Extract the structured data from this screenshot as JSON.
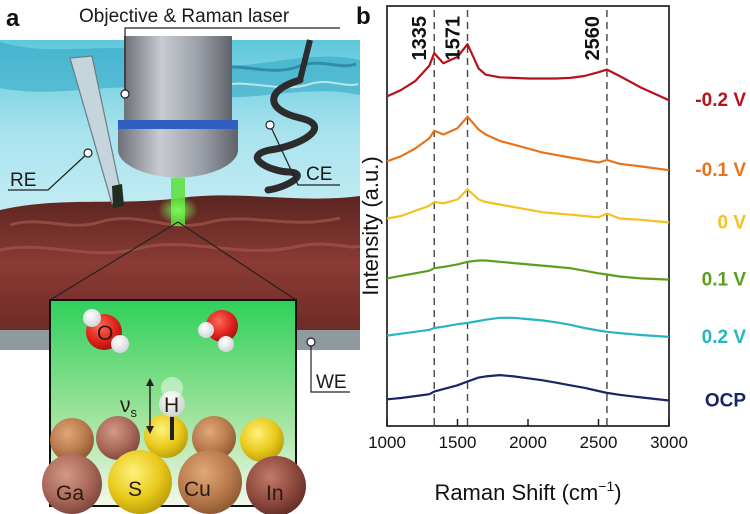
{
  "panel_a": {
    "letter": "a",
    "objective_label": "Objective & Raman laser",
    "re_label": "RE",
    "ce_label": "CE",
    "we_label": "WE",
    "water_o_label": "O",
    "h_label": "H",
    "vibration_label": "ν",
    "vibration_sub": "s",
    "elements": [
      "Ga",
      "S",
      "Cu",
      "In"
    ]
  },
  "panel_b": {
    "letter": "b"
  },
  "colors": {
    "-0.2 V": "#b5121b",
    "-0.1 V": "#e8731a",
    "0 V": "#f2c21e",
    "0.1 V": "#5e9e1f",
    "0.2 V": "#27b5c2",
    "OCP": "#1a2466"
  },
  "chart_data": {
    "type": "line",
    "xlabel": "Raman Shift (cm",
    "xlabel_sup": "−1",
    "xlabel_close": ")",
    "ylabel": "Intensity (a.u.)",
    "xlim": [
      1000,
      3000
    ],
    "xticks": [
      1000,
      1500,
      2000,
      2500,
      3000
    ],
    "x": [
      1000,
      1100,
      1200,
      1300,
      1335,
      1400,
      1500,
      1571,
      1650,
      1700,
      1800,
      1900,
      2000,
      2100,
      2200,
      2300,
      2400,
      2500,
      2560,
      2650,
      2800,
      3000
    ],
    "series": [
      {
        "name": "-0.2 V",
        "values": [
          0.18,
          0.28,
          0.42,
          0.66,
          0.86,
          0.7,
          0.8,
          1.0,
          0.62,
          0.52,
          0.48,
          0.47,
          0.46,
          0.46,
          0.46,
          0.47,
          0.5,
          0.56,
          0.6,
          0.5,
          0.32,
          0.12
        ]
      },
      {
        "name": "-0.1 V",
        "values": [
          0.16,
          0.24,
          0.36,
          0.52,
          0.64,
          0.58,
          0.68,
          0.86,
          0.66,
          0.58,
          0.48,
          0.42,
          0.36,
          0.3,
          0.26,
          0.22,
          0.18,
          0.14,
          0.18,
          0.12,
          0.08,
          0.02
        ]
      },
      {
        "name": "0 V",
        "values": [
          0.06,
          0.1,
          0.18,
          0.26,
          0.32,
          0.3,
          0.36,
          0.52,
          0.36,
          0.32,
          0.28,
          0.24,
          0.2,
          0.16,
          0.14,
          0.12,
          0.1,
          0.08,
          0.14,
          0.06,
          0.04,
          0.0
        ]
      },
      {
        "name": "0.1 V",
        "values": [
          0.02,
          0.06,
          0.1,
          0.14,
          0.18,
          0.2,
          0.24,
          0.28,
          0.3,
          0.3,
          0.28,
          0.26,
          0.24,
          0.22,
          0.2,
          0.18,
          0.14,
          0.1,
          0.08,
          0.05,
          0.02,
          0.0
        ]
      },
      {
        "name": "0.2 V",
        "values": [
          0.02,
          0.05,
          0.08,
          0.11,
          0.14,
          0.16,
          0.2,
          0.22,
          0.25,
          0.27,
          0.3,
          0.3,
          0.28,
          0.26,
          0.23,
          0.19,
          0.14,
          0.1,
          0.08,
          0.06,
          0.03,
          0.0
        ]
      },
      {
        "name": "OCP",
        "values": [
          0.02,
          0.04,
          0.07,
          0.1,
          0.14,
          0.18,
          0.24,
          0.3,
          0.36,
          0.38,
          0.4,
          0.38,
          0.35,
          0.32,
          0.28,
          0.24,
          0.2,
          0.15,
          0.12,
          0.09,
          0.05,
          0.0
        ]
      }
    ],
    "offsets": {
      "-0.2 V": 5.0,
      "-0.1 V": 4.0,
      "0 V": 3.2,
      "0.1 V": 2.3,
      "0.2 V": 1.4,
      "OCP": 0.4
    },
    "ylim": [
      0,
      6.6
    ],
    "peak_lines": [
      1335,
      1571,
      2560
    ],
    "peak_labels": [
      "1335",
      "1571",
      "2560"
    ],
    "legend": [
      "-0.2 V",
      "-0.1 V",
      "0 V",
      "0.1 V",
      "0.2 V",
      "OCP"
    ]
  }
}
